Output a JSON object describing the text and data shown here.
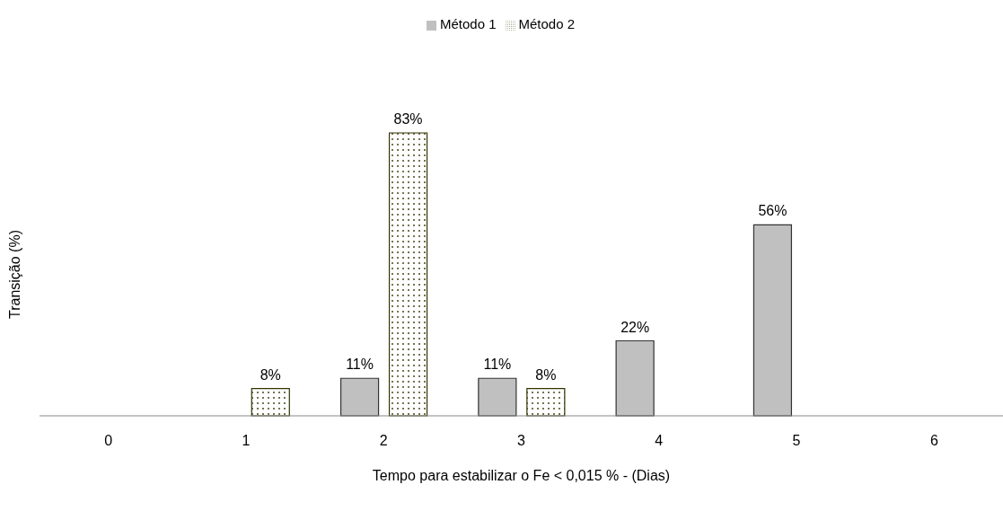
{
  "chart_data": {
    "type": "bar",
    "xlabel": "Tempo para estabilizar o Fe < 0,015 % - (Dias)",
    "ylabel": "Transição (%)",
    "categories": [
      "0",
      "1",
      "2",
      "3",
      "4",
      "5",
      "6"
    ],
    "legend": "top",
    "grid": false,
    "series": [
      {
        "name": "Método 1",
        "color": "#c0c0c0",
        "values": [
          null,
          null,
          11,
          11,
          22,
          56,
          null
        ],
        "value_labels": [
          null,
          null,
          "11%",
          "11%",
          "22%",
          "56%",
          null
        ]
      },
      {
        "name": "Método 2",
        "color": "#333300",
        "values": [
          null,
          8,
          83,
          8,
          null,
          null,
          null
        ],
        "value_labels": [
          null,
          "8%",
          "83%",
          "8%",
          null,
          null,
          null
        ]
      }
    ]
  }
}
